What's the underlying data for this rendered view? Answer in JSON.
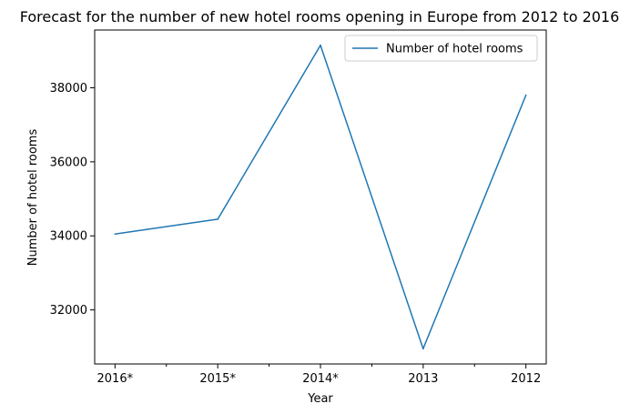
{
  "chart_data": {
    "type": "line",
    "title": "Forecast for the number of new hotel rooms opening in Europe from 2012 to 2016",
    "xlabel": "Year",
    "ylabel": "Number of hotel rooms",
    "categories": [
      "2016*",
      "2015*",
      "2014*",
      "2013",
      "2012"
    ],
    "series": [
      {
        "name": "Number of hotel rooms",
        "values": [
          34050,
          34450,
          39150,
          30950,
          37800
        ],
        "color": "#1f77b4"
      }
    ],
    "yticks": [
      32000,
      34000,
      36000,
      38000
    ],
    "ylim": [
      30540,
      39560
    ],
    "grid": false,
    "legend": "top-right"
  }
}
